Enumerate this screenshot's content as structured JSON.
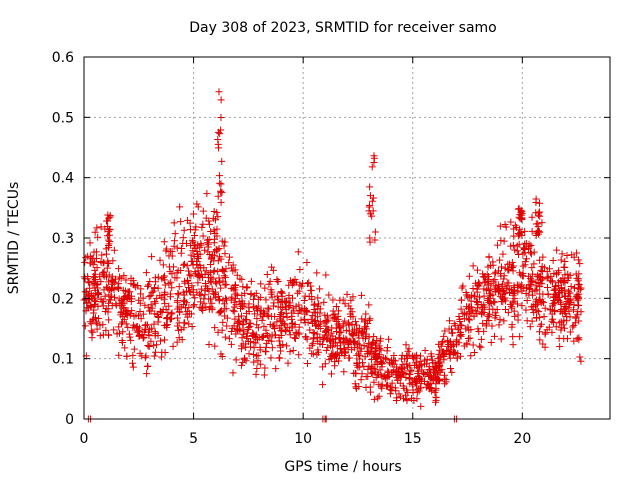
{
  "chart_data": {
    "type": "scatter",
    "title": "Day 308 of 2023, SRMTID for receiver samo",
    "xlabel": "GPS time / hours",
    "ylabel": "SRMTID / TECUs",
    "xlim": [
      0,
      24
    ],
    "ylim": [
      0,
      0.6
    ],
    "x_ticks": [
      0,
      5,
      10,
      15,
      20
    ],
    "x_tick_labels": [
      "0",
      "5",
      "10",
      "15",
      "20"
    ],
    "y_ticks": [
      0,
      0.1,
      0.2,
      0.3,
      0.4,
      0.5,
      0.6
    ],
    "y_tick_labels": [
      "0",
      "0.1",
      "0.2",
      "0.3",
      "0.4",
      "0.5",
      "0.6"
    ],
    "grid": true,
    "marker": "+",
    "color": "#e00000",
    "trend": {
      "hours": [
        0,
        1,
        2,
        3,
        4,
        5,
        6,
        7,
        8,
        9,
        10,
        11,
        12,
        13,
        14,
        15,
        16,
        17,
        18,
        19,
        20,
        21,
        22,
        22.7
      ],
      "center": [
        0.21,
        0.22,
        0.17,
        0.17,
        0.22,
        0.24,
        0.24,
        0.16,
        0.15,
        0.17,
        0.19,
        0.15,
        0.13,
        0.11,
        0.08,
        0.07,
        0.07,
        0.14,
        0.18,
        0.22,
        0.24,
        0.2,
        0.2,
        0.19
      ],
      "spread": [
        0.06,
        0.06,
        0.05,
        0.06,
        0.07,
        0.07,
        0.07,
        0.05,
        0.05,
        0.05,
        0.06,
        0.05,
        0.05,
        0.05,
        0.03,
        0.03,
        0.03,
        0.04,
        0.05,
        0.06,
        0.07,
        0.06,
        0.05,
        0.05
      ]
    },
    "samples_per_hour": 90,
    "bursts": [
      {
        "x": [
          6.1,
          6.3
        ],
        "y": [
          0.35,
          0.56
        ]
      },
      {
        "x": [
          13.0,
          13.3
        ],
        "y": [
          0.28,
          0.44
        ]
      },
      {
        "x": [
          20.6,
          20.8
        ],
        "y": [
          0.3,
          0.37
        ]
      },
      {
        "x": [
          19.8,
          20.0
        ],
        "y": [
          0.3,
          0.36
        ]
      },
      {
        "x": [
          1.0,
          1.2
        ],
        "y": [
          0.28,
          0.34
        ]
      }
    ],
    "zero_points": [
      [
        0.2,
        0
      ],
      [
        0.3,
        0
      ],
      [
        10.9,
        0
      ],
      [
        11.0,
        0
      ],
      [
        11.05,
        0
      ],
      [
        16.9,
        0
      ],
      [
        17.0,
        0
      ]
    ]
  }
}
